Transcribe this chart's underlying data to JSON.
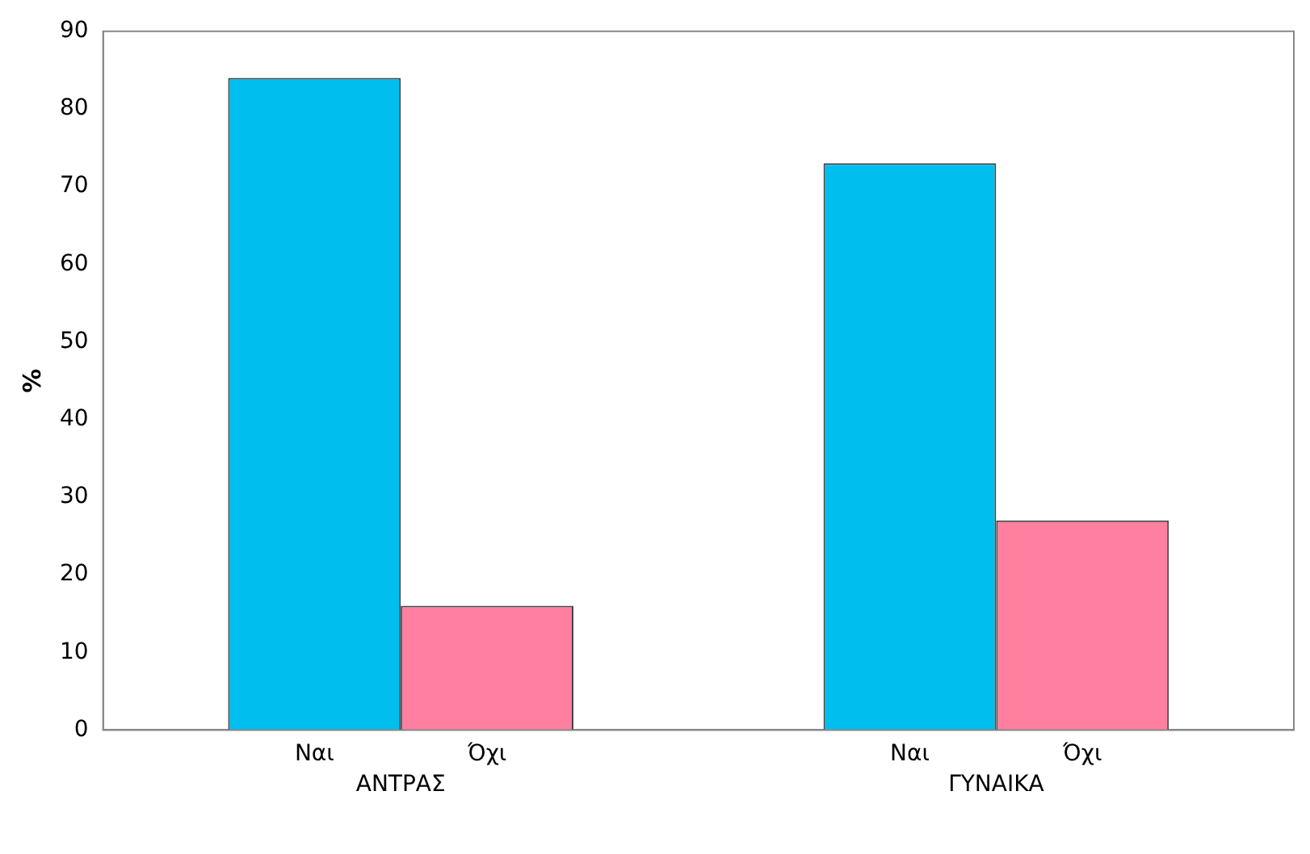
{
  "chart_data": {
    "type": "bar",
    "ylabel": "%",
    "categories": [
      "ΑΝΤΡΑΣ",
      "ΓΥΝΑΙΚΑ"
    ],
    "series": [
      {
        "name": "Ναι",
        "color": "#00bfef",
        "values": [
          84,
          73
        ]
      },
      {
        "name": "Όχι",
        "color": "#ff7fa0",
        "values": [
          16,
          27
        ]
      }
    ],
    "ylim": [
      0,
      90
    ],
    "yticks": [
      0,
      10,
      20,
      30,
      40,
      50,
      60,
      70,
      80,
      90
    ],
    "legend": false,
    "grid": false
  }
}
